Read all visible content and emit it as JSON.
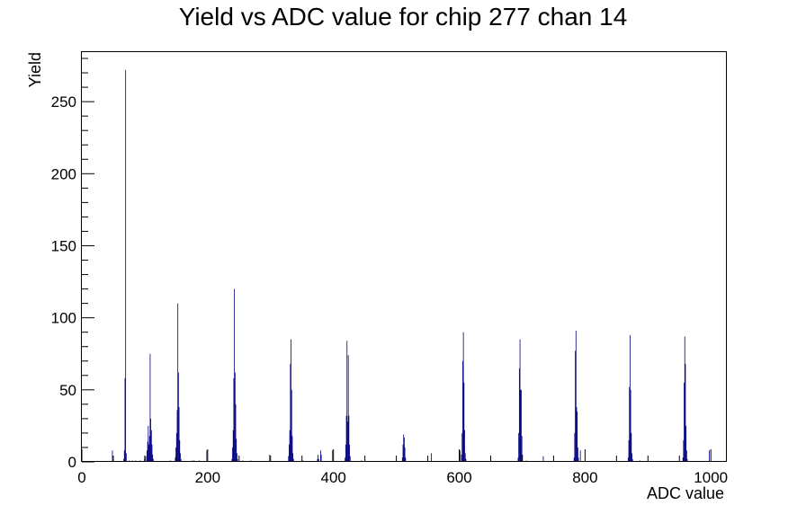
{
  "chart_data": {
    "type": "bar",
    "title": "Yield vs ADC value for chip 277 chan 14",
    "xlabel": "ADC value",
    "ylabel": "Yield",
    "xlim": [
      0,
      1024
    ],
    "ylim": [
      0,
      285
    ],
    "x_ticks": [
      0,
      200,
      400,
      600,
      800,
      1000
    ],
    "y_ticks": [
      0,
      50,
      100,
      150,
      200,
      250
    ],
    "x_tick_labels": [
      "0",
      "200",
      "400",
      "600",
      "800",
      "1000"
    ],
    "y_tick_labels": [
      "0",
      "50",
      "100",
      "150",
      "200",
      "250"
    ],
    "legend": "none",
    "grid": false,
    "bin_width": 1,
    "line_color": "#000080",
    "bins": [
      {
        "x": 48,
        "y": 8
      },
      {
        "x": 66,
        "y": 2
      },
      {
        "x": 67,
        "y": 8
      },
      {
        "x": 68,
        "y": 58
      },
      {
        "x": 69,
        "y": 272
      },
      {
        "x": 70,
        "y": 6
      },
      {
        "x": 75,
        "y": 1
      },
      {
        "x": 80,
        "y": 1
      },
      {
        "x": 85,
        "y": 1
      },
      {
        "x": 92,
        "y": 1
      },
      {
        "x": 99,
        "y": 2
      },
      {
        "x": 101,
        "y": 4
      },
      {
        "x": 103,
        "y": 8
      },
      {
        "x": 104,
        "y": 14
      },
      {
        "x": 105,
        "y": 25
      },
      {
        "x": 106,
        "y": 12
      },
      {
        "x": 107,
        "y": 18
      },
      {
        "x": 108,
        "y": 75
      },
      {
        "x": 109,
        "y": 30
      },
      {
        "x": 110,
        "y": 22
      },
      {
        "x": 111,
        "y": 12
      },
      {
        "x": 112,
        "y": 5
      },
      {
        "x": 113,
        "y": 2
      },
      {
        "x": 140,
        "y": 1
      },
      {
        "x": 148,
        "y": 3
      },
      {
        "x": 149,
        "y": 10
      },
      {
        "x": 150,
        "y": 20
      },
      {
        "x": 151,
        "y": 36
      },
      {
        "x": 152,
        "y": 110
      },
      {
        "x": 153,
        "y": 62
      },
      {
        "x": 154,
        "y": 38
      },
      {
        "x": 155,
        "y": 15
      },
      {
        "x": 156,
        "y": 6
      },
      {
        "x": 157,
        "y": 2
      },
      {
        "x": 175,
        "y": 1
      },
      {
        "x": 178,
        "y": 1
      },
      {
        "x": 186,
        "y": 1
      },
      {
        "x": 198,
        "y": 8
      },
      {
        "x": 238,
        "y": 2
      },
      {
        "x": 239,
        "y": 10
      },
      {
        "x": 240,
        "y": 22
      },
      {
        "x": 241,
        "y": 58
      },
      {
        "x": 242,
        "y": 120
      },
      {
        "x": 243,
        "y": 62
      },
      {
        "x": 244,
        "y": 40
      },
      {
        "x": 245,
        "y": 16
      },
      {
        "x": 246,
        "y": 6
      },
      {
        "x": 247,
        "y": 2
      },
      {
        "x": 255,
        "y": 1
      },
      {
        "x": 268,
        "y": 1
      },
      {
        "x": 298,
        "y": 5
      },
      {
        "x": 328,
        "y": 4
      },
      {
        "x": 329,
        "y": 12
      },
      {
        "x": 330,
        "y": 22
      },
      {
        "x": 331,
        "y": 68
      },
      {
        "x": 332,
        "y": 85
      },
      {
        "x": 333,
        "y": 50
      },
      {
        "x": 334,
        "y": 18
      },
      {
        "x": 335,
        "y": 6
      },
      {
        "x": 336,
        "y": 2
      },
      {
        "x": 351,
        "y": 1
      },
      {
        "x": 374,
        "y": 2
      },
      {
        "x": 375,
        "y": 5
      },
      {
        "x": 376,
        "y": 2
      },
      {
        "x": 379,
        "y": 8
      },
      {
        "x": 380,
        "y": 5
      },
      {
        "x": 398,
        "y": 8
      },
      {
        "x": 418,
        "y": 3
      },
      {
        "x": 419,
        "y": 12
      },
      {
        "x": 420,
        "y": 32
      },
      {
        "x": 421,
        "y": 84
      },
      {
        "x": 422,
        "y": 28
      },
      {
        "x": 423,
        "y": 74
      },
      {
        "x": 424,
        "y": 32
      },
      {
        "x": 425,
        "y": 12
      },
      {
        "x": 426,
        "y": 4
      },
      {
        "x": 444,
        "y": 1
      },
      {
        "x": 509,
        "y": 3
      },
      {
        "x": 510,
        "y": 12
      },
      {
        "x": 511,
        "y": 19
      },
      {
        "x": 512,
        "y": 17
      },
      {
        "x": 513,
        "y": 10
      },
      {
        "x": 514,
        "y": 3
      },
      {
        "x": 555,
        "y": 6
      },
      {
        "x": 601,
        "y": 8
      },
      {
        "x": 603,
        "y": 5
      },
      {
        "x": 604,
        "y": 20
      },
      {
        "x": 605,
        "y": 70
      },
      {
        "x": 606,
        "y": 90
      },
      {
        "x": 607,
        "y": 55
      },
      {
        "x": 608,
        "y": 22
      },
      {
        "x": 609,
        "y": 6
      },
      {
        "x": 610,
        "y": 2
      },
      {
        "x": 650,
        "y": 1
      },
      {
        "x": 693,
        "y": 3
      },
      {
        "x": 694,
        "y": 20
      },
      {
        "x": 695,
        "y": 65
      },
      {
        "x": 696,
        "y": 85
      },
      {
        "x": 697,
        "y": 50
      },
      {
        "x": 698,
        "y": 50
      },
      {
        "x": 699,
        "y": 18
      },
      {
        "x": 700,
        "y": 5
      },
      {
        "x": 706,
        "y": 1
      },
      {
        "x": 733,
        "y": 4
      },
      {
        "x": 782,
        "y": 3
      },
      {
        "x": 783,
        "y": 20
      },
      {
        "x": 784,
        "y": 77
      },
      {
        "x": 785,
        "y": 91
      },
      {
        "x": 786,
        "y": 38
      },
      {
        "x": 787,
        "y": 35
      },
      {
        "x": 788,
        "y": 10
      },
      {
        "x": 789,
        "y": 3
      },
      {
        "x": 792,
        "y": 8
      },
      {
        "x": 868,
        "y": 3
      },
      {
        "x": 869,
        "y": 15
      },
      {
        "x": 870,
        "y": 52
      },
      {
        "x": 871,
        "y": 88
      },
      {
        "x": 872,
        "y": 50
      },
      {
        "x": 873,
        "y": 20
      },
      {
        "x": 874,
        "y": 6
      },
      {
        "x": 875,
        "y": 2
      },
      {
        "x": 887,
        "y": 1
      },
      {
        "x": 955,
        "y": 3
      },
      {
        "x": 956,
        "y": 15
      },
      {
        "x": 957,
        "y": 55
      },
      {
        "x": 958,
        "y": 87
      },
      {
        "x": 959,
        "y": 68
      },
      {
        "x": 960,
        "y": 25
      },
      {
        "x": 961,
        "y": 8
      },
      {
        "x": 962,
        "y": 2
      },
      {
        "x": 997,
        "y": 8
      }
    ]
  }
}
